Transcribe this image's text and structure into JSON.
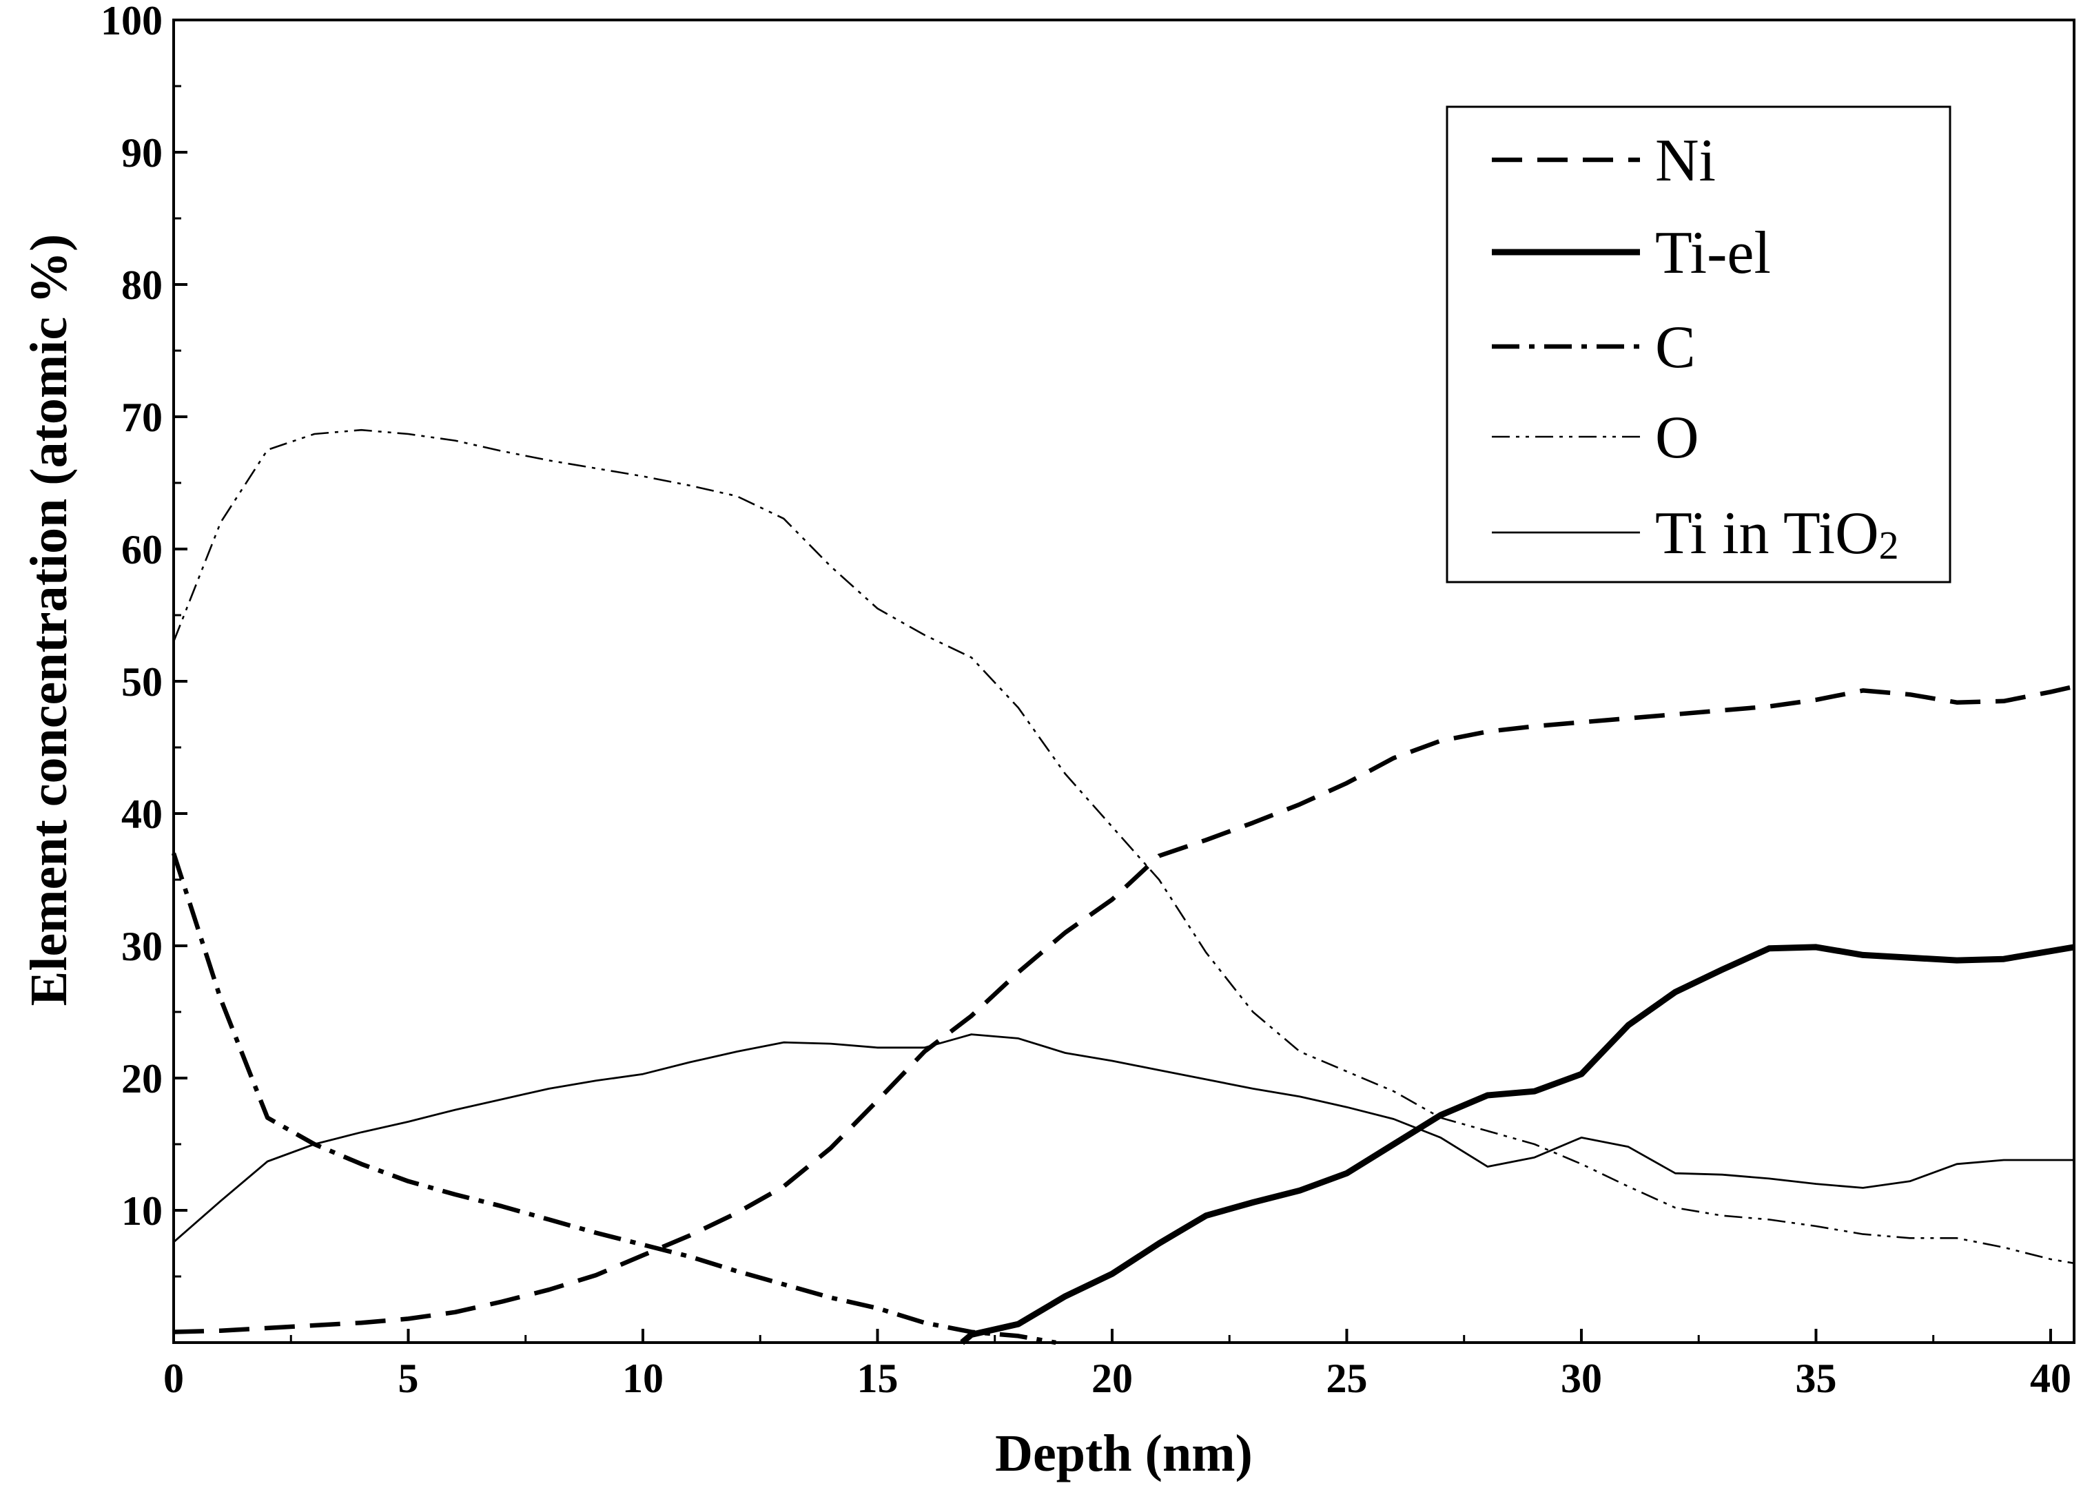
{
  "chart_data": {
    "type": "line",
    "title": "",
    "xlabel": "Depth (nm)",
    "ylabel": "Element concentration (atomic %)",
    "xlim": [
      0,
      40.5
    ],
    "ylim": [
      0,
      100
    ],
    "xticks": [
      "0",
      "5",
      "10",
      "15",
      "20",
      "25",
      "30",
      "35",
      "40"
    ],
    "yticks": [
      "10",
      "20",
      "30",
      "40",
      "50",
      "60",
      "70",
      "80",
      "90",
      "100"
    ],
    "grid": false,
    "legend_position": "top-right",
    "series": [
      {
        "name": "Ni",
        "style": "dashed-thick",
        "points": [
          [
            0,
            0.8
          ],
          [
            1,
            0.9
          ],
          [
            2,
            1.1
          ],
          [
            3,
            1.3
          ],
          [
            4,
            1.5
          ],
          [
            5,
            1.8
          ],
          [
            6,
            2.3
          ],
          [
            7,
            3.1
          ],
          [
            8,
            4.0
          ],
          [
            9,
            5.1
          ],
          [
            10,
            6.6
          ],
          [
            11,
            8.1
          ],
          [
            12,
            9.8
          ],
          [
            13,
            11.8
          ],
          [
            14,
            14.7
          ],
          [
            15,
            18.3
          ],
          [
            16,
            22.0
          ],
          [
            17,
            24.7
          ],
          [
            18,
            28.0
          ],
          [
            19,
            31.0
          ],
          [
            20,
            33.5
          ],
          [
            21,
            36.8
          ],
          [
            22,
            38.0
          ],
          [
            23,
            39.3
          ],
          [
            24,
            40.7
          ],
          [
            25,
            42.3
          ],
          [
            26,
            44.2
          ],
          [
            27,
            45.5
          ],
          [
            28,
            46.2
          ],
          [
            29,
            46.6
          ],
          [
            30,
            46.9
          ],
          [
            31,
            47.2
          ],
          [
            32,
            47.5
          ],
          [
            33,
            47.8
          ],
          [
            34,
            48.1
          ],
          [
            35,
            48.6
          ],
          [
            36,
            49.3
          ],
          [
            37,
            49.0
          ],
          [
            38,
            48.4
          ],
          [
            39,
            48.5
          ],
          [
            40,
            49.2
          ],
          [
            40.5,
            49.6
          ]
        ]
      },
      {
        "name": "Ti-el",
        "style": "solid-thick",
        "points": [
          [
            16.8,
            0
          ],
          [
            17,
            0.6
          ],
          [
            18,
            1.4
          ],
          [
            19,
            3.5
          ],
          [
            20,
            5.2
          ],
          [
            21,
            7.5
          ],
          [
            22,
            9.6
          ],
          [
            23,
            10.6
          ],
          [
            24,
            11.5
          ],
          [
            25,
            12.8
          ],
          [
            26,
            15.0
          ],
          [
            27,
            17.2
          ],
          [
            28,
            18.7
          ],
          [
            29,
            19.0
          ],
          [
            30,
            20.3
          ],
          [
            31,
            24.0
          ],
          [
            32,
            26.5
          ],
          [
            33,
            28.2
          ],
          [
            34,
            29.8
          ],
          [
            35,
            29.9
          ],
          [
            36,
            29.3
          ],
          [
            37,
            29.1
          ],
          [
            38,
            28.9
          ],
          [
            39,
            29.0
          ],
          [
            40,
            29.6
          ],
          [
            40.5,
            29.9
          ]
        ]
      },
      {
        "name": "C",
        "style": "dashdot-thick",
        "points": [
          [
            0,
            37
          ],
          [
            1,
            26
          ],
          [
            2,
            17
          ],
          [
            3,
            15
          ],
          [
            4,
            13.5
          ],
          [
            5,
            12.2
          ],
          [
            6,
            11.2
          ],
          [
            7,
            10.3
          ],
          [
            8,
            9.3
          ],
          [
            9,
            8.3
          ],
          [
            10,
            7.4
          ],
          [
            11,
            6.5
          ],
          [
            12,
            5.4
          ],
          [
            13,
            4.4
          ],
          [
            14,
            3.4
          ],
          [
            15,
            2.6
          ],
          [
            16,
            1.5
          ],
          [
            17,
            0.8
          ],
          [
            18,
            0.5
          ],
          [
            18.8,
            0
          ]
        ]
      },
      {
        "name": "O",
        "style": "dashdotdot-thin",
        "points": [
          [
            0,
            53
          ],
          [
            1,
            62
          ],
          [
            2,
            67.5
          ],
          [
            3,
            68.7
          ],
          [
            4,
            69.0
          ],
          [
            5,
            68.7
          ],
          [
            6,
            68.2
          ],
          [
            7,
            67.4
          ],
          [
            8,
            66.7
          ],
          [
            9,
            66.1
          ],
          [
            10,
            65.5
          ],
          [
            11,
            64.8
          ],
          [
            12,
            64.0
          ],
          [
            13,
            62.3
          ],
          [
            14,
            58.7
          ],
          [
            15,
            55.5
          ],
          [
            16,
            53.5
          ],
          [
            17,
            51.8
          ],
          [
            18,
            48.0
          ],
          [
            19,
            43.0
          ],
          [
            20,
            39.0
          ],
          [
            21,
            35.0
          ],
          [
            22,
            29.5
          ],
          [
            23,
            25.0
          ],
          [
            24,
            22.0
          ],
          [
            25,
            20.5
          ],
          [
            26,
            19.0
          ],
          [
            27,
            17.0
          ],
          [
            28,
            16.0
          ],
          [
            29,
            15.0
          ],
          [
            30,
            13.5
          ],
          [
            31,
            11.8
          ],
          [
            32,
            10.2
          ],
          [
            33,
            9.6
          ],
          [
            34,
            9.3
          ],
          [
            35,
            8.8
          ],
          [
            36,
            8.2
          ],
          [
            37,
            7.9
          ],
          [
            38,
            7.9
          ],
          [
            39,
            7.2
          ],
          [
            40,
            6.3
          ],
          [
            40.5,
            6.0
          ]
        ]
      },
      {
        "name": "Ti in TiO",
        "name_subscript": "2",
        "style": "solid-thin",
        "points": [
          [
            0,
            7.6
          ],
          [
            1,
            10.7
          ],
          [
            2,
            13.7
          ],
          [
            3,
            15.0
          ],
          [
            4,
            15.9
          ],
          [
            5,
            16.7
          ],
          [
            6,
            17.6
          ],
          [
            7,
            18.4
          ],
          [
            8,
            19.2
          ],
          [
            9,
            19.8
          ],
          [
            10,
            20.3
          ],
          [
            11,
            21.2
          ],
          [
            12,
            22.0
          ],
          [
            13,
            22.7
          ],
          [
            14,
            22.6
          ],
          [
            15,
            22.3
          ],
          [
            16,
            22.3
          ],
          [
            17,
            23.3
          ],
          [
            18,
            23.0
          ],
          [
            19,
            21.9
          ],
          [
            20,
            21.3
          ],
          [
            21,
            20.6
          ],
          [
            22,
            19.9
          ],
          [
            23,
            19.2
          ],
          [
            24,
            18.6
          ],
          [
            25,
            17.8
          ],
          [
            26,
            16.9
          ],
          [
            27,
            15.5
          ],
          [
            28,
            13.3
          ],
          [
            29,
            14.0
          ],
          [
            30,
            15.5
          ],
          [
            31,
            14.8
          ],
          [
            32,
            12.8
          ],
          [
            33,
            12.7
          ],
          [
            34,
            12.4
          ],
          [
            35,
            12.0
          ],
          [
            36,
            11.7
          ],
          [
            37,
            12.2
          ],
          [
            38,
            13.5
          ],
          [
            39,
            13.8
          ],
          [
            40,
            13.8
          ],
          [
            40.5,
            13.8
          ]
        ]
      }
    ]
  }
}
